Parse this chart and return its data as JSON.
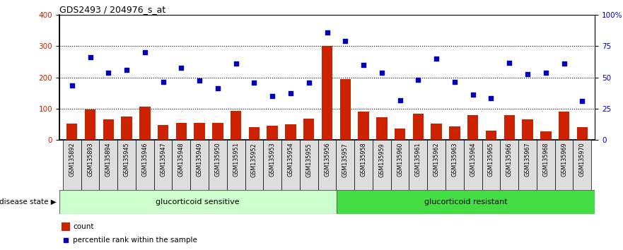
{
  "title": "GDS2493 / 204976_s_at",
  "samples": [
    "GSM135892",
    "GSM135893",
    "GSM135894",
    "GSM135945",
    "GSM135946",
    "GSM135947",
    "GSM135948",
    "GSM135949",
    "GSM135950",
    "GSM135951",
    "GSM135952",
    "GSM135953",
    "GSM135954",
    "GSM135955",
    "GSM135956",
    "GSM135957",
    "GSM135958",
    "GSM135959",
    "GSM135960",
    "GSM135961",
    "GSM135962",
    "GSM135963",
    "GSM135964",
    "GSM135965",
    "GSM135966",
    "GSM135967",
    "GSM135968",
    "GSM135969",
    "GSM135970"
  ],
  "counts": [
    52,
    97,
    65,
    75,
    107,
    47,
    55,
    55,
    55,
    93,
    42,
    45,
    50,
    68,
    300,
    195,
    90,
    73,
    37,
    85,
    52,
    43,
    80,
    30,
    80,
    65,
    27,
    90,
    42
  ],
  "percentiles": [
    175,
    265,
    215,
    225,
    280,
    185,
    230,
    190,
    165,
    245,
    183,
    140,
    150,
    183,
    345,
    318,
    240,
    215,
    128,
    192,
    260,
    185,
    145,
    133,
    247,
    210,
    216,
    245,
    125
  ],
  "group1_count": 15,
  "group2_count": 14,
  "group1_label": "glucorticoid sensitive",
  "group2_label": "glucorticoid resistant",
  "bar_color": "#cc2200",
  "dot_color": "#0000bb",
  "ylim": [
    0,
    400
  ],
  "yticks_left": [
    0,
    100,
    200,
    300,
    400
  ],
  "yticks_right_labels": [
    "0",
    "25",
    "50",
    "75",
    "100%"
  ],
  "yticks_right_vals": [
    0,
    100,
    200,
    300,
    400
  ],
  "group1_color": "#ccffcc",
  "group2_color": "#44dd44",
  "disease_state_label": "disease state",
  "legend_count_label": "count",
  "legend_pct_label": "percentile rank within the sample",
  "xlabel_bg": "#dddddd"
}
